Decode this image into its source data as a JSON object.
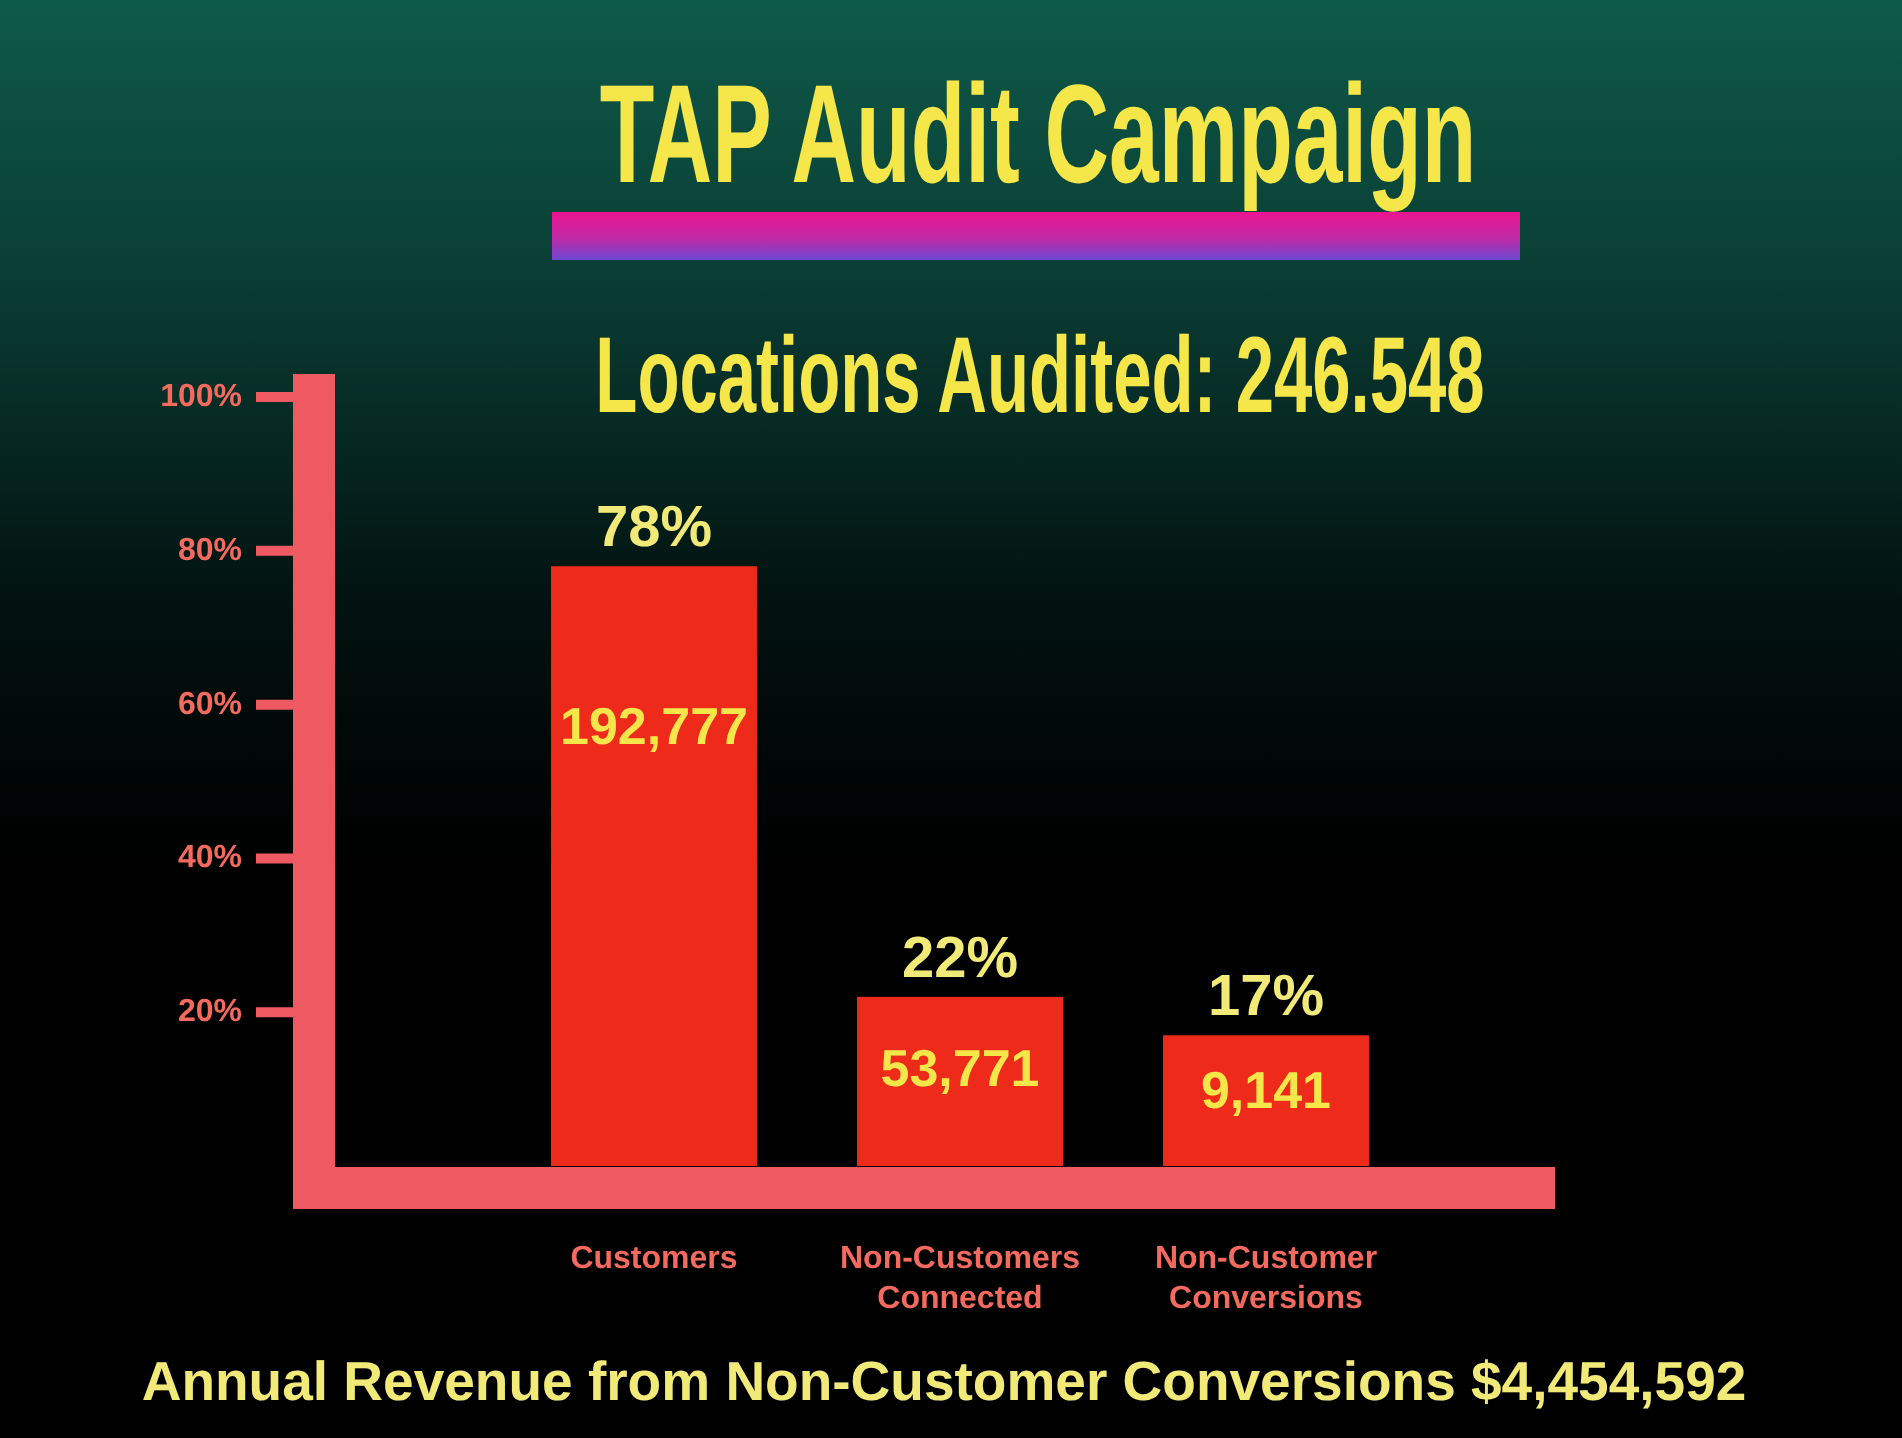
{
  "chart_data": {
    "type": "bar",
    "title": "TAP Audit Campaign",
    "subtitle": "Locations Audited: 246.548",
    "categories": [
      "Customers",
      "Non-Customers Connected",
      "Non-Customer Conversions"
    ],
    "values": [
      78,
      22,
      17
    ],
    "color": "#ee2a1a",
    "value_labels": [
      "78%",
      "22%",
      "17%"
    ],
    "ylim": [
      0,
      103
    ],
    "yticks": [
      {
        "value": 20,
        "label": "20%"
      },
      {
        "value": 40,
        "label": "40%"
      },
      {
        "value": 60,
        "label": "60%"
      },
      {
        "value": 80,
        "label": "80%"
      },
      {
        "value": 100,
        "label": "100%"
      }
    ],
    "annotations": [
      "192,777",
      "53,771",
      "9,141",
      "Annual Revenue from Non-Customer Conversions $4,454,592"
    ]
  }
}
